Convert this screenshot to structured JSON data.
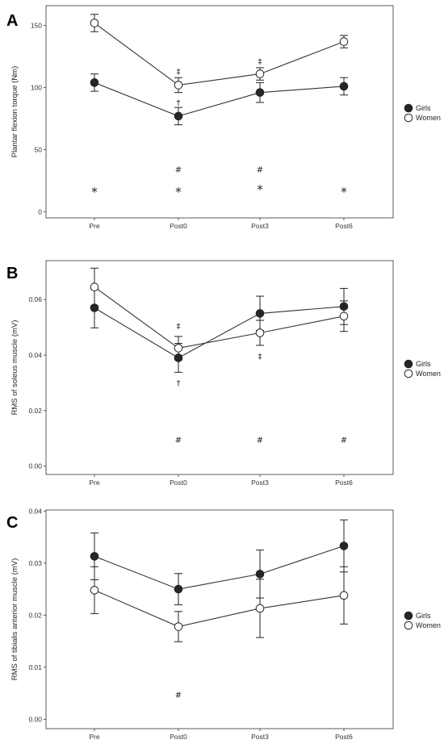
{
  "chart_data": [
    {
      "type": "line",
      "panel_label": "A",
      "categories": [
        "Pre",
        "Post0",
        "Post3",
        "Post6"
      ],
      "ylabel": "Plantar flexion torque (Nm)",
      "ylim": [
        -5,
        166
      ],
      "yticks": [
        0,
        50,
        100,
        150
      ],
      "ytick_labels": [
        "0",
        "50",
        "100",
        "150"
      ],
      "grid": false,
      "legend_position": "right",
      "series": [
        {
          "name": "Girls",
          "color": "#262626",
          "marker": "filled-circle",
          "values": [
            104,
            77,
            96,
            101
          ],
          "errors": [
            7,
            7,
            8,
            7
          ]
        },
        {
          "name": "Women",
          "color": "#ffffff",
          "marker": "open-circle",
          "values": [
            152,
            102,
            111,
            137
          ],
          "errors": [
            7,
            6,
            5,
            5
          ]
        }
      ],
      "annotations": [
        {
          "text": "*",
          "category": "Pre",
          "y": 19
        },
        {
          "text": "*",
          "category": "Post0",
          "y": 19
        },
        {
          "text": "*",
          "category": "Post3",
          "y": 21
        },
        {
          "text": "*",
          "category": "Post6",
          "y": 19
        },
        {
          "text": "#",
          "category": "Post0",
          "y": 34
        },
        {
          "text": "#",
          "category": "Post3",
          "y": 34
        },
        {
          "text": "†",
          "category": "Post0",
          "y": 88
        },
        {
          "text": "‡",
          "category": "Post0",
          "y": 113
        },
        {
          "text": "‡",
          "category": "Post3",
          "y": 121
        }
      ]
    },
    {
      "type": "line",
      "panel_label": "B",
      "categories": [
        "Pre",
        "Post0",
        "Post3",
        "Post6"
      ],
      "ylabel": "RMS of soleus muscle (mV)",
      "ylim": [
        -0.003,
        0.074
      ],
      "yticks": [
        0,
        0.02,
        0.04,
        0.06
      ],
      "ytick_labels": [
        "0.00",
        "0.02",
        "0.04",
        "0.06"
      ],
      "grid": false,
      "legend_position": "right",
      "series": [
        {
          "name": "Girls",
          "color": "#262626",
          "marker": "filled-circle",
          "values": [
            0.057,
            0.039,
            0.055,
            0.0575
          ],
          "errors": [
            0.0072,
            0.0052,
            0.0062,
            0.0065
          ]
        },
        {
          "name": "Women",
          "color": "#ffffff",
          "marker": "open-circle",
          "values": [
            0.0645,
            0.0425,
            0.048,
            0.054
          ],
          "errors": [
            0.0068,
            0.0042,
            0.0045,
            0.0055
          ]
        }
      ],
      "annotations": [
        {
          "text": "#",
          "category": "Post0",
          "y": 0.0095
        },
        {
          "text": "#",
          "category": "Post3",
          "y": 0.0095
        },
        {
          "text": "#",
          "category": "Post6",
          "y": 0.0095
        },
        {
          "text": "†",
          "category": "Post0",
          "y": 0.03
        },
        {
          "text": "‡",
          "category": "Post0",
          "y": 0.0505
        },
        {
          "text": "‡",
          "category": "Post3",
          "y": 0.0395
        }
      ]
    },
    {
      "type": "line",
      "panel_label": "C",
      "categories": [
        "Pre",
        "Post0",
        "Post3",
        "Post6"
      ],
      "ylabel": "RMS of tibialis anterior muscle (mV)",
      "ylim": [
        -0.0018,
        0.0402
      ],
      "yticks": [
        0,
        0.01,
        0.02,
        0.03,
        0.04
      ],
      "ytick_labels": [
        "0.00",
        "0.01",
        "0.02",
        "0.03",
        "0.04"
      ],
      "grid": false,
      "legend_position": "right",
      "series": [
        {
          "name": "Girls",
          "color": "#262626",
          "marker": "filled-circle",
          "values": [
            0.0313,
            0.025,
            0.0279,
            0.0333
          ],
          "errors": [
            0.0045,
            0.003,
            0.0046,
            0.005
          ]
        },
        {
          "name": "Women",
          "color": "#ffffff",
          "marker": "open-circle",
          "values": [
            0.0248,
            0.0178,
            0.0213,
            0.0238
          ],
          "errors": [
            0.0045,
            0.0029,
            0.0056,
            0.0055
          ]
        }
      ],
      "annotations": [
        {
          "text": "#",
          "category": "Post0",
          "y": 0.0047
        }
      ]
    }
  ]
}
